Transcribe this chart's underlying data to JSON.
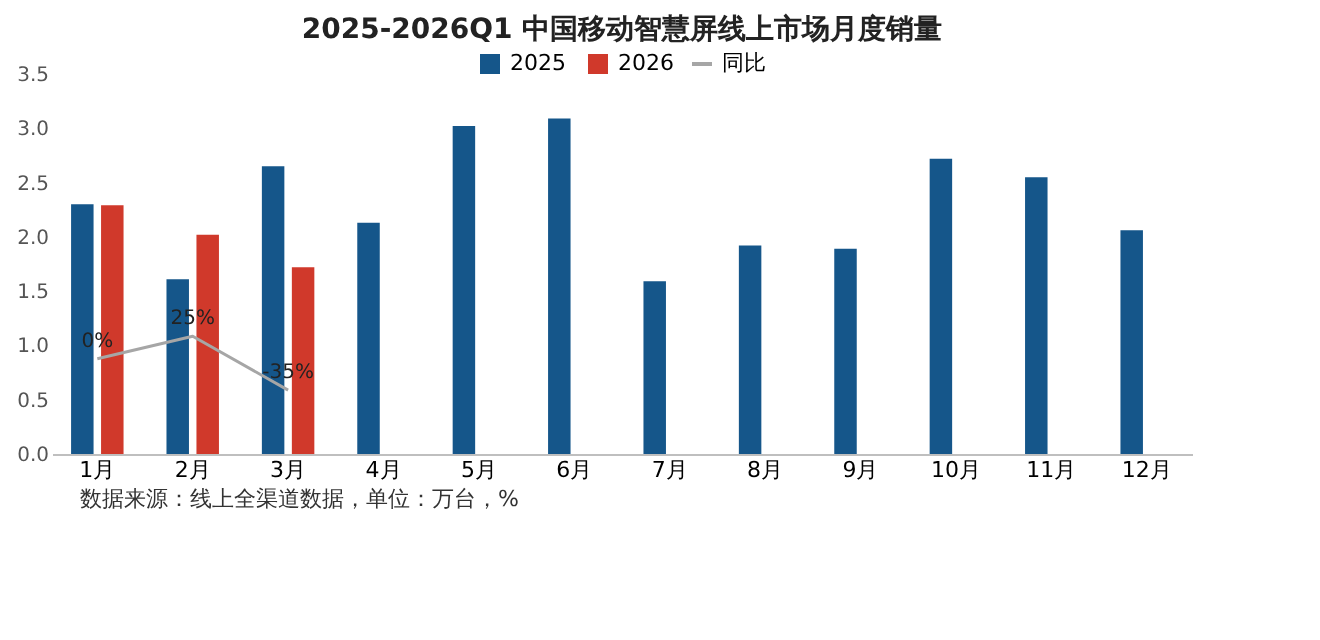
{
  "chart_data": {
    "type": "bar",
    "title": "2025-2026Q1 中国移动智慧屏线上市场月度销量",
    "categories": [
      "1月",
      "2月",
      "3月",
      "4月",
      "5月",
      "6月",
      "7月",
      "8月",
      "9月",
      "10月",
      "11月",
      "12月"
    ],
    "series": [
      {
        "name": "2025",
        "color": "#15568a",
        "values": [
          2.3,
          1.61,
          2.65,
          2.13,
          3.02,
          3.09,
          1.59,
          1.92,
          1.89,
          2.72,
          2.55,
          2.06
        ]
      },
      {
        "name": "2026",
        "color": "#d0392b",
        "values": [
          2.29,
          2.02,
          1.72,
          null,
          null,
          null,
          null,
          null,
          null,
          null,
          null,
          null
        ]
      },
      {
        "name": "同比",
        "type": "line",
        "axis": "y2",
        "color": "#a6a6a6",
        "values": [
          0,
          25,
          -35,
          null,
          null,
          null,
          null,
          null,
          null,
          null,
          null,
          null
        ],
        "value_labels": [
          "0%",
          "25%",
          "-35%",
          null,
          null,
          null,
          null,
          null,
          null,
          null,
          null,
          null
        ]
      }
    ],
    "ylim": [
      0,
      3.5
    ],
    "yticks": [
      {
        "value": 0,
        "label": "0.0"
      },
      0.5,
      {
        "value": 1,
        "label": "1.0"
      },
      1.5,
      {
        "value": 2,
        "label": "2.0"
      },
      2.5,
      {
        "value": 3,
        "label": "3.0"
      },
      3.5
    ],
    "legend": "top",
    "annotations": [
      "数据来源：线上全渠道数据，单位：万台，%"
    ]
  }
}
